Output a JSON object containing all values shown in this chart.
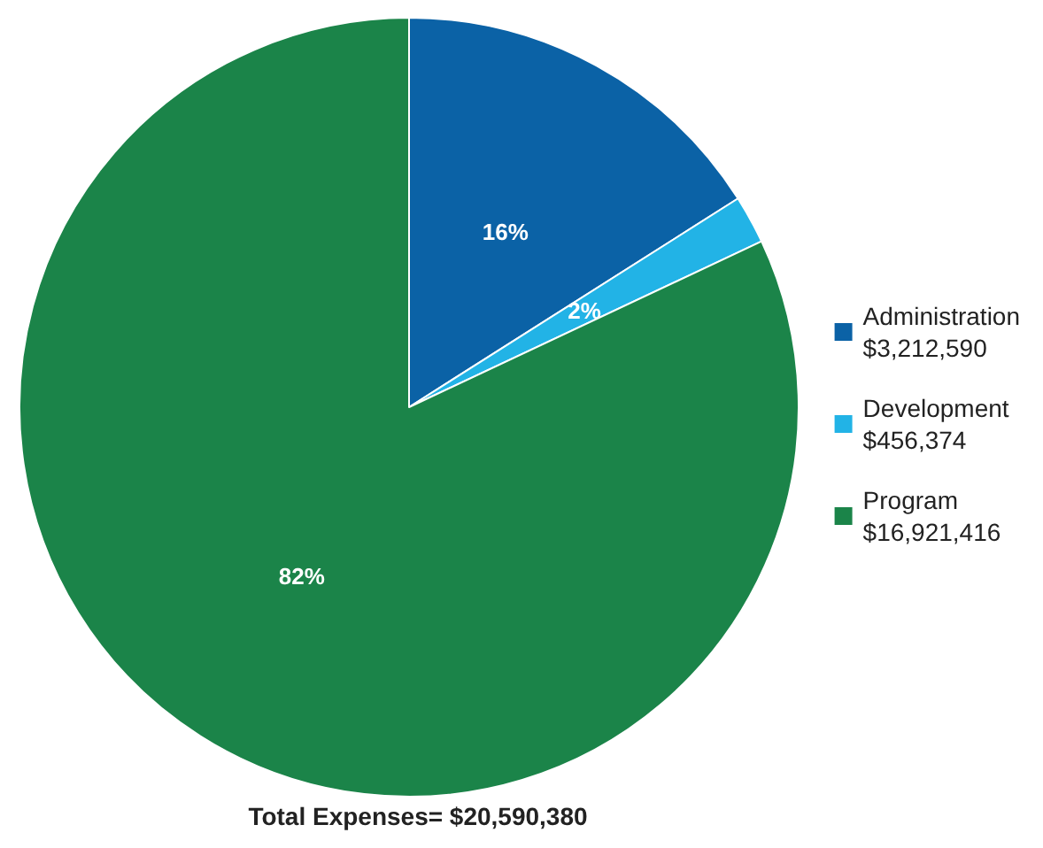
{
  "chart_data": {
    "type": "pie",
    "title": "Total Expenses= $20,590,380",
    "categories": [
      "Administration\n$3,212,590",
      "Development\n$456,374",
      "Program\n$16,921,416"
    ],
    "values": [
      16,
      2,
      82
    ],
    "value_labels": [
      "16%",
      "2%",
      "82%"
    ],
    "colors": [
      "#0b62a6",
      "#22b3e6",
      "#1b8449"
    ],
    "legend": "right"
  }
}
